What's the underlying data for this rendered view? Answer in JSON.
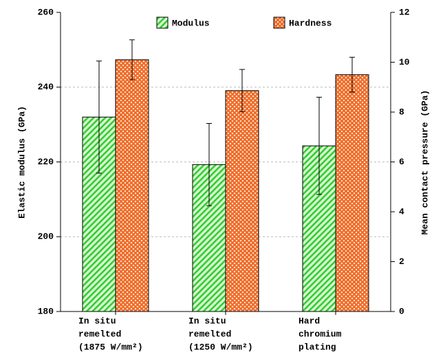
{
  "chart_data": {
    "type": "bar",
    "categories": [
      [
        "In situ",
        "remelted",
        "(1875 W/mm²)"
      ],
      [
        "In situ",
        "remelted",
        "(1250 W/mm²)"
      ],
      [
        "Hard",
        "chromium",
        "plating"
      ]
    ],
    "ylabel": "Elastic modulus (GPa)",
    "y2label": "Mean contact pressure (GPa)",
    "ylim": [
      180,
      260
    ],
    "yticks": [
      180,
      200,
      220,
      240,
      260
    ],
    "y2lim": [
      0,
      12
    ],
    "y2ticks": [
      0,
      2,
      4,
      6,
      8,
      10,
      12
    ],
    "grid": true,
    "legend": "top-right",
    "series": [
      {
        "name": "Modulus",
        "color": "#33cc33",
        "pattern": "hatch",
        "values": [
          232,
          219.3,
          224.3
        ],
        "errors": [
          15,
          11,
          13
        ]
      },
      {
        "name": "Hardness",
        "color": "#f07030",
        "pattern": "check",
        "axis": "y2",
        "values": [
          10.1,
          8.86,
          9.5
        ],
        "errors": [
          0.8,
          0.85,
          0.7
        ]
      }
    ]
  }
}
